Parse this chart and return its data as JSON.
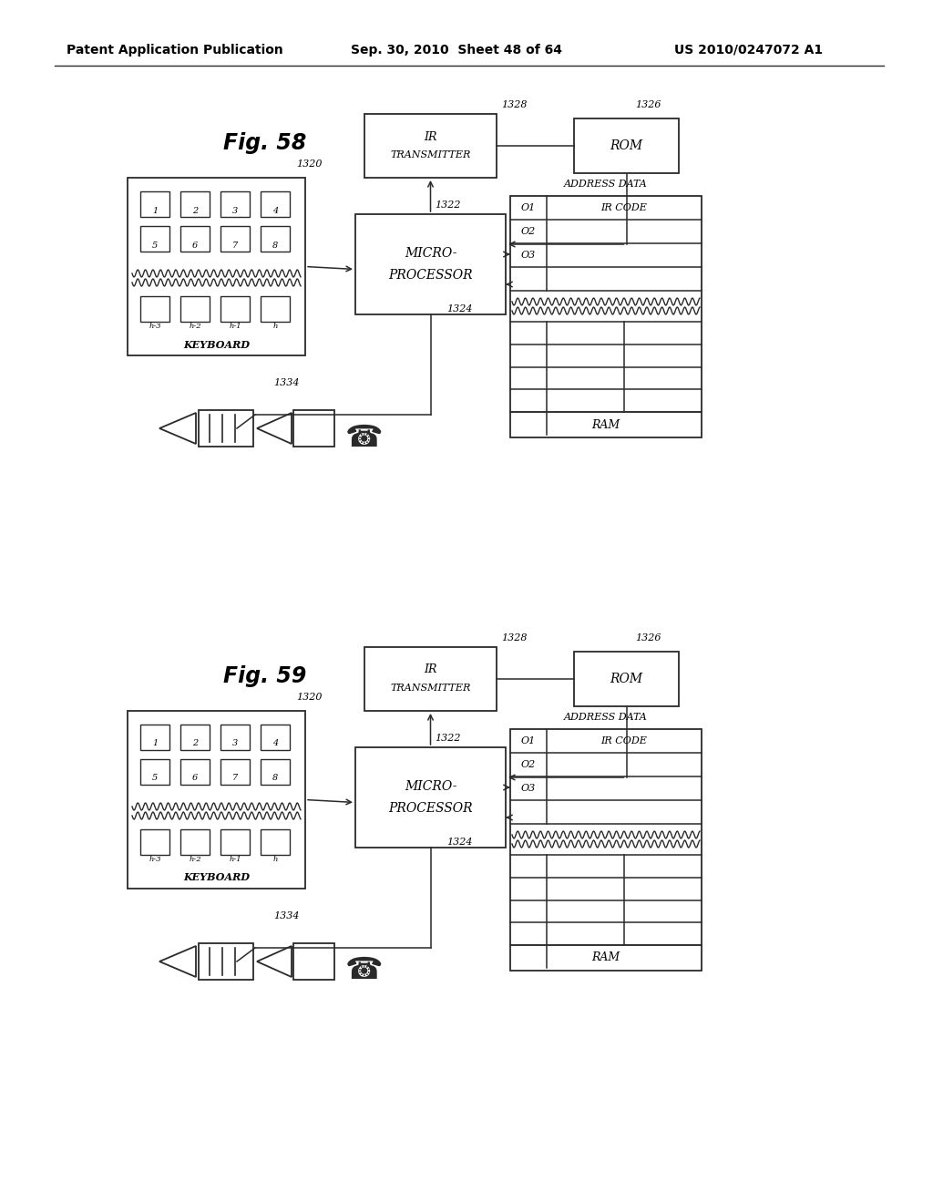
{
  "bg_color": "#ffffff",
  "line_color": "#2a2a2a",
  "fig58_label": "Fig. 58",
  "fig59_label": "Fig. 59",
  "header1": "Patent Application Publication",
  "header2": "Sep. 30, 2010  Sheet 48 of 64",
  "header3": "US 2010/0247072 A1"
}
